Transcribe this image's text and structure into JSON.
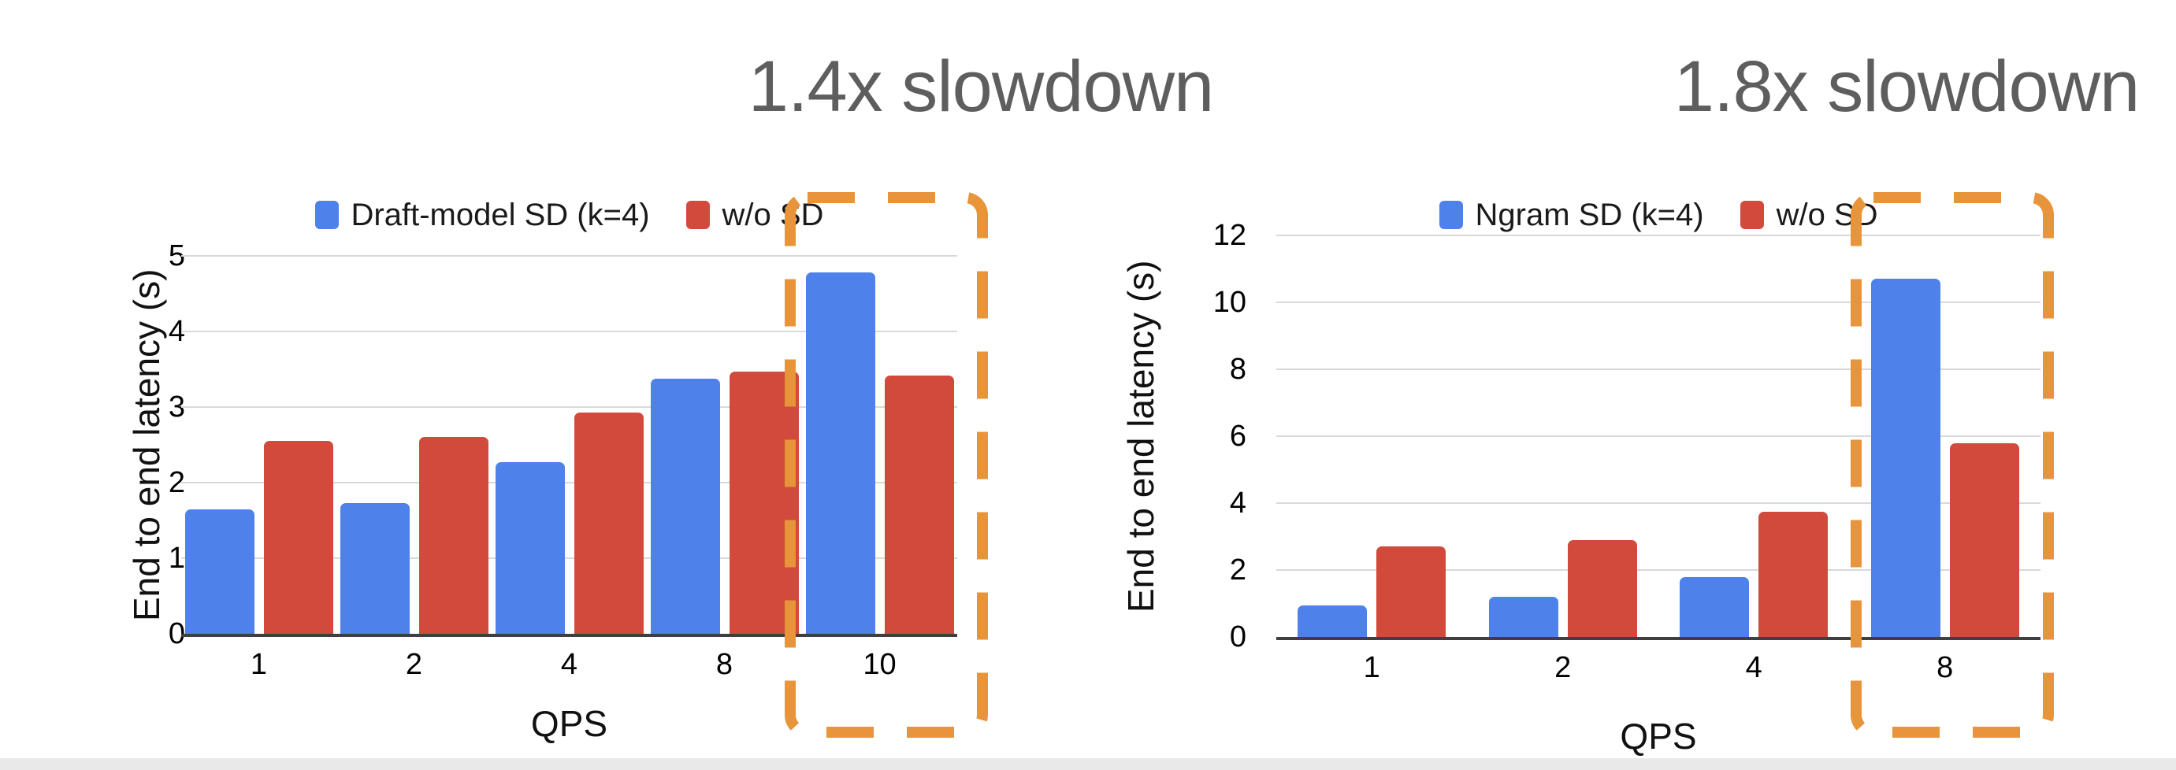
{
  "titles": {
    "left_annotation": "1.4x slowdown",
    "right_annotation": "1.8x slowdown"
  },
  "colors": {
    "series_blue": "#4E81EA",
    "series_red": "#D24A3C",
    "highlight_orange": "#E8943A",
    "annotation_gray": "#5E5E5E",
    "gridline": "#D9D9D9",
    "axis": "#3F3F3F",
    "footer_strip": "#E9E9E9"
  },
  "chart_data": [
    {
      "type": "bar",
      "annotation": "1.4x slowdown",
      "legend_position": "top",
      "grid": true,
      "ylabel": "End to end latency (s)",
      "xlabel": "QPS",
      "ylim": [
        0,
        5
      ],
      "ytick_step": 1,
      "yticks": [
        0,
        1,
        2,
        3,
        4,
        5
      ],
      "categories": [
        "1",
        "2",
        "4",
        "8",
        "10"
      ],
      "series": [
        {
          "name": "Draft-model SD (k=4)",
          "color": "#4E81EA",
          "values": [
            1.65,
            1.73,
            2.27,
            3.38,
            4.78
          ]
        },
        {
          "name": "w/o SD",
          "color": "#D24A3C",
          "values": [
            2.55,
            2.6,
            2.93,
            3.47,
            3.42
          ]
        }
      ],
      "highlighted_category": "10"
    },
    {
      "type": "bar",
      "annotation": "1.8x slowdown",
      "legend_position": "top",
      "grid": true,
      "ylabel": "End to end latency (s)",
      "xlabel": "QPS",
      "ylim": [
        0,
        12
      ],
      "ytick_step": 2,
      "yticks": [
        0,
        2,
        4,
        6,
        8,
        10,
        12
      ],
      "categories": [
        "1",
        "2",
        "4",
        "8"
      ],
      "series": [
        {
          "name": "Ngram SD (k=4)",
          "color": "#4E81EA",
          "values": [
            0.95,
            1.2,
            1.8,
            10.7
          ]
        },
        {
          "name": "w/o SD",
          "color": "#D24A3C",
          "values": [
            2.7,
            2.9,
            3.75,
            5.8
          ]
        }
      ],
      "highlighted_category": "8"
    }
  ]
}
